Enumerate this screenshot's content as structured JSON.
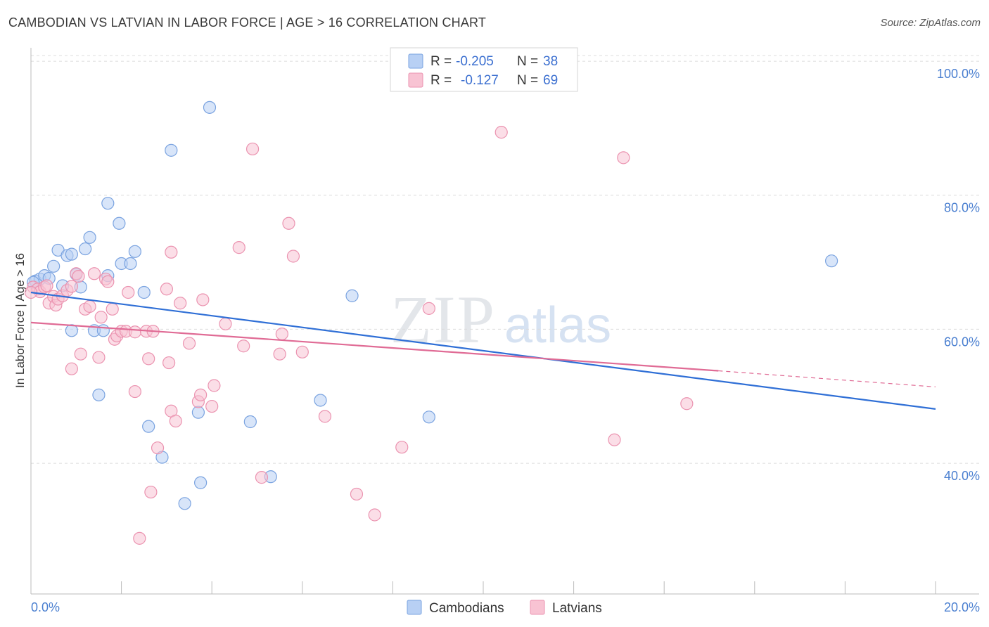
{
  "title": "CAMBODIAN VS LATVIAN IN LABOR FORCE | AGE > 16 CORRELATION CHART",
  "source": "Source: ZipAtlas.com",
  "watermark": {
    "zip": "ZIP",
    "atlas": "atlas"
  },
  "colors": {
    "cambodian_fill": "#b8d0f4",
    "cambodian_stroke": "#7aa3e0",
    "cambodian_line": "#2f6fd6",
    "latvian_fill": "#f8c3d3",
    "latvian_stroke": "#eb93b0",
    "latvian_line": "#e06b95",
    "tick_label": "#4a7fd0",
    "grid": "#dcdcdc"
  },
  "legend": {
    "rows": [
      {
        "r_label": "R =",
        "r_value": "-0.205",
        "n_label": "N =",
        "n_value": "38"
      },
      {
        "r_label": "R =",
        "r_value": "-0.127",
        "n_label": "N =",
        "n_value": "69"
      }
    ]
  },
  "bottom_legend": [
    "Cambodians",
    "Latvians"
  ],
  "chart_data": {
    "type": "scatter",
    "title": "CAMBODIAN VS LATVIAN IN LABOR FORCE | AGE > 16 CORRELATION CHART",
    "xlabel": "",
    "ylabel": "In Labor Force | Age > 16",
    "xlim": [
      0,
      20
    ],
    "ylim": [
      20.5,
      102
    ],
    "x_tick_labels": [
      "0.0%",
      "20.0%"
    ],
    "y_ticks": [
      40,
      60,
      80,
      100
    ],
    "y_tick_labels": [
      "40.0%",
      "60.0%",
      "80.0%",
      "100.0%"
    ],
    "grid": true,
    "series": [
      {
        "name": "Cambodians",
        "r": -0.205,
        "n": 38,
        "trend": {
          "x0": 0,
          "y0": 65.5,
          "x1": 20,
          "y1": 48.1
        },
        "points": [
          [
            0.1,
            67.2
          ],
          [
            0.2,
            67.5
          ],
          [
            0.3,
            68.0
          ],
          [
            0.4,
            67.6
          ],
          [
            0.5,
            69.4
          ],
          [
            0.6,
            71.8
          ],
          [
            0.7,
            66.5
          ],
          [
            0.8,
            71.0
          ],
          [
            0.9,
            71.2
          ],
          [
            0.9,
            59.8
          ],
          [
            1.0,
            68.2
          ],
          [
            1.1,
            66.3
          ],
          [
            1.2,
            72.0
          ],
          [
            1.3,
            73.7
          ],
          [
            1.4,
            59.8
          ],
          [
            1.5,
            50.2
          ],
          [
            1.6,
            59.8
          ],
          [
            1.7,
            78.8
          ],
          [
            1.7,
            68.0
          ],
          [
            1.95,
            75.8
          ],
          [
            2.0,
            69.8
          ],
          [
            2.2,
            69.8
          ],
          [
            2.3,
            71.6
          ],
          [
            2.5,
            65.5
          ],
          [
            2.6,
            45.5
          ],
          [
            2.9,
            40.9
          ],
          [
            3.1,
            86.7
          ],
          [
            3.4,
            34.0
          ],
          [
            3.7,
            47.6
          ],
          [
            3.75,
            37.1
          ],
          [
            3.95,
            93.1
          ],
          [
            4.85,
            46.2
          ],
          [
            5.3,
            38.0
          ],
          [
            6.4,
            49.4
          ],
          [
            7.1,
            65.0
          ],
          [
            8.8,
            46.9
          ],
          [
            17.7,
            70.2
          ],
          [
            0.05,
            67.0
          ]
        ]
      },
      {
        "name": "Latvians",
        "r": -0.127,
        "n": 69,
        "trend": {
          "x0": 0,
          "y0": 61.0,
          "x1": 15.2,
          "y1": 53.8
        },
        "trend_dashed": {
          "x0": 15.2,
          "y0": 53.8,
          "x1": 20,
          "y1": 51.4
        },
        "points": [
          [
            0.05,
            66.3
          ],
          [
            0.15,
            66.0
          ],
          [
            0.2,
            65.6
          ],
          [
            0.3,
            66.3
          ],
          [
            0.35,
            66.5
          ],
          [
            0.4,
            63.9
          ],
          [
            0.5,
            64.9
          ],
          [
            0.55,
            63.6
          ],
          [
            0.6,
            64.5
          ],
          [
            0.7,
            65.0
          ],
          [
            0.8,
            65.8
          ],
          [
            0.9,
            66.4
          ],
          [
            0.9,
            54.1
          ],
          [
            1.0,
            68.3
          ],
          [
            1.05,
            67.9
          ],
          [
            1.1,
            56.3
          ],
          [
            1.2,
            63.0
          ],
          [
            1.3,
            63.4
          ],
          [
            1.4,
            68.3
          ],
          [
            1.5,
            55.8
          ],
          [
            1.55,
            61.8
          ],
          [
            1.65,
            67.5
          ],
          [
            1.7,
            67.1
          ],
          [
            1.8,
            63.0
          ],
          [
            1.85,
            58.5
          ],
          [
            1.9,
            59.0
          ],
          [
            2.0,
            59.7
          ],
          [
            2.1,
            59.7
          ],
          [
            2.15,
            65.5
          ],
          [
            2.3,
            59.6
          ],
          [
            2.3,
            50.7
          ],
          [
            2.4,
            28.8
          ],
          [
            2.55,
            59.7
          ],
          [
            2.6,
            55.6
          ],
          [
            2.65,
            35.7
          ],
          [
            2.7,
            59.7
          ],
          [
            2.8,
            42.3
          ],
          [
            3.0,
            66.0
          ],
          [
            3.05,
            55.0
          ],
          [
            3.1,
            71.5
          ],
          [
            3.1,
            47.8
          ],
          [
            3.2,
            46.3
          ],
          [
            3.3,
            63.9
          ],
          [
            3.5,
            57.9
          ],
          [
            3.7,
            49.2
          ],
          [
            3.75,
            50.2
          ],
          [
            3.8,
            64.4
          ],
          [
            4.0,
            48.5
          ],
          [
            4.05,
            51.6
          ],
          [
            4.3,
            60.8
          ],
          [
            4.6,
            72.2
          ],
          [
            4.7,
            57.5
          ],
          [
            4.9,
            86.9
          ],
          [
            5.1,
            37.9
          ],
          [
            5.5,
            56.3
          ],
          [
            5.55,
            59.3
          ],
          [
            5.7,
            75.8
          ],
          [
            5.8,
            70.9
          ],
          [
            6.0,
            56.6
          ],
          [
            6.5,
            47.0
          ],
          [
            7.2,
            35.4
          ],
          [
            7.6,
            32.3
          ],
          [
            8.2,
            42.4
          ],
          [
            8.8,
            63.1
          ],
          [
            10.4,
            89.4
          ],
          [
            12.9,
            43.5
          ],
          [
            13.1,
            85.6
          ],
          [
            14.5,
            48.9
          ],
          [
            0.0,
            65.5
          ]
        ]
      }
    ]
  }
}
